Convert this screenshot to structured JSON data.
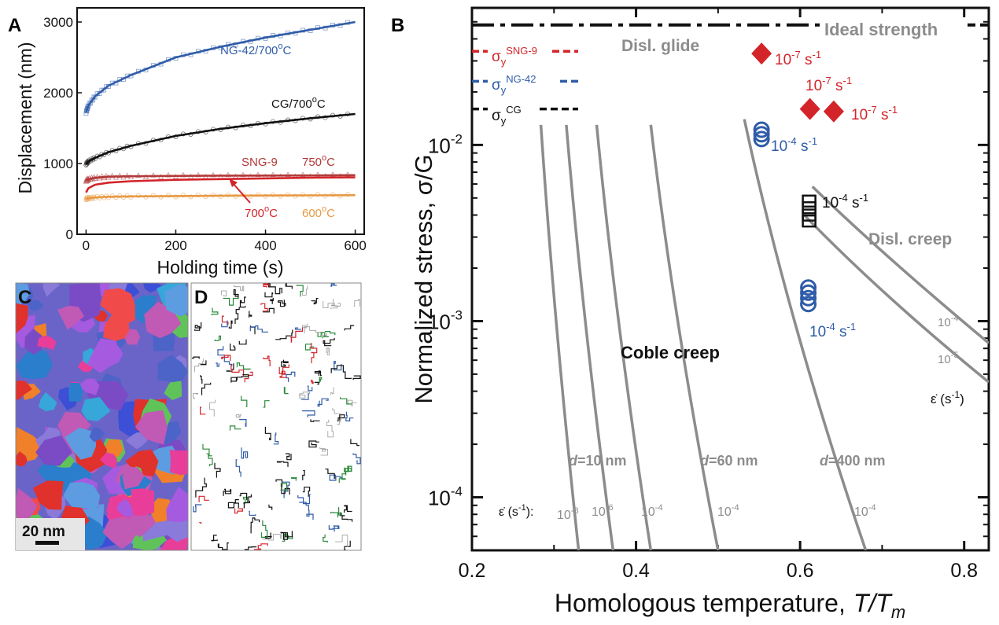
{
  "panels": {
    "a": "A",
    "b": "B",
    "c": "C",
    "d": "D"
  },
  "scale_bar": "20 nm",
  "colors": {
    "blue": "#2f5ca8",
    "black": "#111111",
    "red": "#d3242a",
    "orange": "#e89a45",
    "gray": "#8c8c8c"
  },
  "chart_data": [
    {
      "type": "line",
      "panel": "A",
      "xlabel": "Holding time (s)",
      "ylabel": "Displacement (nm)",
      "xlim": [
        -20,
        620
      ],
      "ylim": [
        0,
        3200
      ],
      "xticks": [
        "0",
        "200",
        "400",
        "600"
      ],
      "yticks": [
        "0",
        "1000",
        "2000",
        "3000"
      ],
      "series": [
        {
          "name": "NG-42/700oC",
          "label_main": "NG-42/700",
          "label_sup": "o",
          "label_end": "C",
          "color": "#2f5ca8",
          "marker": "square",
          "x": [
            0,
            5,
            20,
            50,
            100,
            200,
            300,
            400,
            500,
            600
          ],
          "y": [
            1720,
            1820,
            1950,
            2100,
            2250,
            2500,
            2650,
            2780,
            2890,
            3000
          ]
        },
        {
          "name": "CG/700oC",
          "label_main": "CG/700",
          "label_sup": "o",
          "label_end": "C",
          "color": "#111111",
          "marker": "circle",
          "x": [
            0,
            5,
            20,
            50,
            100,
            200,
            300,
            400,
            500,
            600
          ],
          "y": [
            990,
            1030,
            1080,
            1160,
            1250,
            1390,
            1490,
            1570,
            1640,
            1700
          ]
        },
        {
          "name": "SNG-9 750oC",
          "color": "#b23a3a",
          "marker": "triangle",
          "x": [
            0,
            5,
            20,
            50,
            100,
            200,
            300,
            400,
            500,
            600
          ],
          "y": [
            760,
            780,
            800,
            815,
            820,
            825,
            828,
            830,
            832,
            835
          ]
        },
        {
          "name": "SNG-9 700oC",
          "color": "#d3242a",
          "marker": "none",
          "x": [
            0,
            5,
            20,
            50,
            100,
            200,
            300,
            400,
            500,
            600
          ],
          "y": [
            590,
            650,
            700,
            730,
            750,
            770,
            780,
            790,
            800,
            805
          ]
        },
        {
          "name": "SNG-9 600oC",
          "color": "#e89a45",
          "marker": "circle",
          "x": [
            0,
            5,
            20,
            50,
            100,
            200,
            300,
            400,
            500,
            600
          ],
          "y": [
            500,
            510,
            520,
            530,
            535,
            540,
            545,
            548,
            550,
            552
          ]
        }
      ],
      "annotations": {
        "sng9": "SNG-9",
        "t750_main": "750",
        "t750_sup": "o",
        "t750_end": "C",
        "t700_main": "700",
        "t700_sup": "o",
        "t700_end": "C",
        "t600_main": "600",
        "t600_sup": "o",
        "t600_end": "C"
      }
    },
    {
      "type": "line",
      "panel": "B",
      "yscale": "log",
      "xlabel_main": "Homologous temperature,",
      "xlabel_var": "T/T",
      "xlabel_sub": "m",
      "ylabel": "Normalized stress, σ/G",
      "xlim": [
        0.2,
        0.83
      ],
      "ylim": [
        5e-05,
        0.06
      ],
      "xticks": [
        "0.2",
        "0.4",
        "0.6",
        "0.8"
      ],
      "yticks": [
        {
          "base": "10",
          "exp": "-2"
        },
        {
          "base": "10",
          "exp": "-3"
        },
        {
          "base": "10",
          "exp": "-4"
        }
      ],
      "reference_lines": [
        {
          "name": "Ideal strength",
          "label": "Ideal strength",
          "y": 0.048,
          "style": "dashdot",
          "color": "#111111"
        },
        {
          "name": "sigma_y SNG-9",
          "label_main": "σ",
          "label_sub": "y",
          "label_sup": "SNG-9",
          "y": 0.034,
          "style": "dash",
          "color": "#d3242a"
        },
        {
          "name": "sigma_y NG-42",
          "label_main": "σ",
          "label_sub": "y",
          "label_sup": "NG-42",
          "y": 0.023,
          "style": "dash",
          "color": "#2f5ca8"
        },
        {
          "name": "sigma_y CG",
          "label_main": "σ",
          "label_sub": "y",
          "label_sup": "CG",
          "y": 0.016,
          "style": "dash",
          "color": "#111111"
        }
      ],
      "regime_labels": {
        "glide": "Disl. glide",
        "disl_creep": "Disl. creep",
        "coble": "Coble creep"
      },
      "coble_curves": [
        {
          "grain": "d=10 nm",
          "rate": {
            "base": "10",
            "exp": "-8"
          },
          "x": [
            0.284,
            0.3,
            0.33
          ],
          "y": [
            0.013,
            0.001,
            5e-05
          ]
        },
        {
          "grain": "d=10 nm",
          "rate": {
            "base": "10",
            "exp": "-6"
          },
          "x": [
            0.315,
            0.335,
            0.372
          ],
          "y": [
            0.013,
            0.001,
            5e-05
          ]
        },
        {
          "grain": "d=10 nm",
          "rate": {
            "base": "10",
            "exp": "-4"
          },
          "x": [
            0.352,
            0.375,
            0.418
          ],
          "y": [
            0.013,
            0.001,
            5e-05
          ]
        },
        {
          "grain": "d=60 nm",
          "rate": {
            "base": "10",
            "exp": "-4"
          },
          "x": [
            0.418,
            0.446,
            0.5
          ],
          "y": [
            0.013,
            0.001,
            5e-05
          ]
        },
        {
          "grain": "d=400 nm",
          "rate": {
            "base": "10",
            "exp": "-4"
          },
          "x": [
            0.532,
            0.585,
            0.68
          ],
          "y": [
            0.014,
            0.001,
            5e-05
          ]
        }
      ],
      "grain_labels": [
        {
          "d": "d",
          "rest": "=10 nm"
        },
        {
          "d": "d",
          "rest": "=60 nm"
        },
        {
          "d": "d",
          "rest": "=400 nm"
        }
      ],
      "rate_axis_label": "ε̇ (s",
      "rate_axis_label_sup": "-1",
      "rate_axis_label_end": "):",
      "rate_key_label": "ε̇ (s",
      "rate_key_label_end": ")",
      "disl_creep_curves": [
        {
          "rate": {
            "base": "10",
            "exp": "-4"
          },
          "x": [
            0.615,
            0.7,
            0.83
          ],
          "y": [
            0.0058,
            0.0024,
            0.00075
          ]
        },
        {
          "rate": {
            "base": "10",
            "exp": "-5"
          },
          "x": [
            0.605,
            0.7,
            0.83
          ],
          "y": [
            0.004,
            0.0014,
            0.00045
          ]
        }
      ],
      "data_points": [
        {
          "name": "SNG-9 1e-7",
          "marker": "diamond",
          "color": "#d3242a",
          "x": [
            0.553,
            0.612,
            0.641
          ],
          "y": [
            0.033,
            0.016,
            0.0155
          ]
        },
        {
          "name": "NG-42 1e-4 high",
          "marker": "circle",
          "color": "#2f5ca8",
          "x": [
            0.553,
            0.553,
            0.553
          ],
          "y": [
            0.0122,
            0.0115,
            0.0108
          ]
        },
        {
          "name": "CG 1e-4",
          "marker": "square",
          "color": "#111111",
          "x": [
            0.611,
            0.611,
            0.611,
            0.611
          ],
          "y": [
            0.0048,
            0.0044,
            0.004,
            0.0037
          ]
        },
        {
          "name": "NG-42 1e-4 low",
          "marker": "circle",
          "color": "#2f5ca8",
          "x": [
            0.61,
            0.61,
            0.61,
            0.61
          ],
          "y": [
            0.00155,
            0.00145,
            0.00135,
            0.00125
          ]
        }
      ],
      "point_labels": [
        {
          "base": "10",
          "exp": "-7",
          "unit": " s",
          "unit_exp": "-1",
          "color": "#d3242a"
        },
        {
          "base": "10",
          "exp": "-7",
          "unit": " s",
          "unit_exp": "-1",
          "color": "#d3242a"
        },
        {
          "base": "10",
          "exp": "-7",
          "unit": " s",
          "unit_exp": "-1",
          "color": "#d3242a"
        },
        {
          "base": "10",
          "exp": "-4",
          "unit": " s",
          "unit_exp": "-1",
          "color": "#2f5ca8"
        },
        {
          "base": "10",
          "exp": "-4",
          "unit": " s",
          "unit_exp": "-1",
          "color": "#111111"
        },
        {
          "base": "10",
          "exp": "-4",
          "unit": " s",
          "unit_exp": "-1",
          "color": "#2f5ca8"
        }
      ]
    }
  ]
}
